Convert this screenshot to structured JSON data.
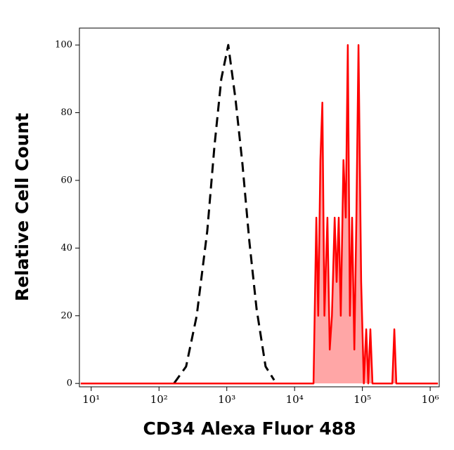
{
  "chart_data": {
    "type": "histogram-overlay",
    "x_label": "CD34 Alexa Fluor 488",
    "y_label": "Relative Cell Count",
    "x_scale": "log",
    "xlim": [
      6.7,
      1360000
    ],
    "ylim": [
      -1,
      105
    ],
    "xticks": [
      {
        "value": 10,
        "label": "10¹"
      },
      {
        "value": 100,
        "label": "10²"
      },
      {
        "value": 1000,
        "label": "10³"
      },
      {
        "value": 10000,
        "label": "10⁴"
      },
      {
        "value": 100000,
        "label": "10⁵"
      },
      {
        "value": 1000000,
        "label": "10⁶"
      }
    ],
    "yticks": [
      0,
      20,
      40,
      60,
      80,
      100
    ],
    "series": [
      {
        "style": "dashed",
        "color": "#000000",
        "fill": false,
        "x": [
          166,
          251,
          360,
          515,
          656,
          830,
          1050,
          1345,
          1700,
          2150,
          2750,
          3730,
          5000
        ],
        "values": [
          0,
          5,
          20,
          45,
          70,
          90,
          100,
          84,
          65,
          42,
          22,
          5,
          1
        ]
      },
      {
        "style": "solid",
        "color": "#ff0000",
        "fill": true,
        "x": [
          7,
          19000,
          20900,
          22300,
          24000,
          25700,
          27500,
          30500,
          33000,
          35500,
          39000,
          41700,
          44800,
          48000,
          52500,
          56900,
          61000,
          65500,
          70500,
          76000,
          81500,
          87500,
          96000,
          105000,
          114000,
          122000,
          131000,
          141000,
          276000,
          296000,
          316000,
          1300000
        ],
        "values": [
          0,
          0,
          49,
          20,
          66,
          83,
          20,
          49,
          10,
          20,
          49,
          30,
          49,
          20,
          66,
          49,
          100,
          20,
          49,
          10,
          49,
          100,
          30,
          0,
          16,
          0,
          16,
          0,
          0,
          16,
          0,
          0
        ]
      }
    ]
  }
}
